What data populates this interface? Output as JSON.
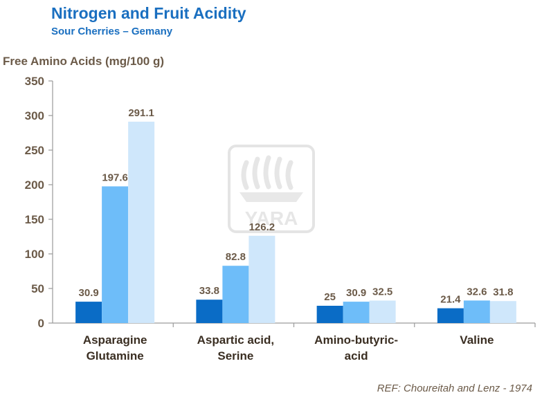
{
  "header": {
    "title": "Nitrogen and Fruit Acidity",
    "subtitle": "Sour Cherries – Gemany"
  },
  "footer": {
    "reference": "REF: Choureitah and Lenz - 1974"
  },
  "watermark": {
    "text": "YARA"
  },
  "colors": {
    "accent": "#1a6fc0",
    "series": [
      "#0a6cc6",
      "#6ebdf9",
      "#cfe7fb"
    ],
    "text": "#6b5a48"
  },
  "chart_data": {
    "type": "bar",
    "title": "Nitrogen and Fruit Acidity",
    "subtitle": "Sour Cherries – Gemany",
    "ylabel": "Free Amino Acids (mg/100 g)",
    "xlabel": "",
    "ylim": [
      0,
      350
    ],
    "yticks": [
      0,
      50,
      100,
      150,
      200,
      250,
      300,
      350
    ],
    "categories": [
      [
        "Asparagine",
        "Glutamine"
      ],
      [
        "Aspartic acid,",
        "Serine"
      ],
      [
        "Amino-butyric-",
        "acid"
      ],
      [
        "Valine"
      ]
    ],
    "series": [
      {
        "name": "Series 1",
        "values": [
          30.9,
          33.8,
          25,
          21.4
        ]
      },
      {
        "name": "Series 2",
        "values": [
          197.6,
          82.8,
          30.9,
          32.6
        ]
      },
      {
        "name": "Series 3",
        "values": [
          291.1,
          126.2,
          32.5,
          31.8
        ]
      }
    ],
    "grid": false,
    "legend": "none"
  }
}
